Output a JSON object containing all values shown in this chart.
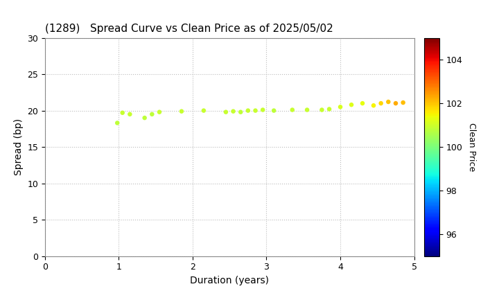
{
  "title": "(1289)   Spread Curve vs Clean Price as of 2025/05/02",
  "xlabel": "Duration (years)",
  "ylabel": "Spread (bp)",
  "colorbar_label": "Clean Price",
  "xlim": [
    0,
    5
  ],
  "ylim": [
    0,
    30
  ],
  "cmap_vmin": 95,
  "cmap_vmax": 105,
  "colorbar_ticks": [
    96,
    98,
    100,
    102,
    104
  ],
  "points": [
    {
      "duration": 0.98,
      "spread": 18.3,
      "price": 100.8
    },
    {
      "duration": 1.05,
      "spread": 19.7,
      "price": 100.9
    },
    {
      "duration": 1.15,
      "spread": 19.5,
      "price": 100.9
    },
    {
      "duration": 1.35,
      "spread": 19.0,
      "price": 100.8
    },
    {
      "duration": 1.45,
      "spread": 19.5,
      "price": 100.8
    },
    {
      "duration": 1.55,
      "spread": 19.8,
      "price": 100.9
    },
    {
      "duration": 1.85,
      "spread": 19.9,
      "price": 100.9
    },
    {
      "duration": 2.15,
      "spread": 20.0,
      "price": 100.9
    },
    {
      "duration": 2.45,
      "spread": 19.8,
      "price": 100.9
    },
    {
      "duration": 2.55,
      "spread": 19.9,
      "price": 100.9
    },
    {
      "duration": 2.65,
      "spread": 19.8,
      "price": 100.8
    },
    {
      "duration": 2.75,
      "spread": 20.0,
      "price": 100.9
    },
    {
      "duration": 2.85,
      "spread": 20.0,
      "price": 100.9
    },
    {
      "duration": 2.95,
      "spread": 20.1,
      "price": 100.9
    },
    {
      "duration": 3.1,
      "spread": 20.0,
      "price": 100.8
    },
    {
      "duration": 3.35,
      "spread": 20.1,
      "price": 100.9
    },
    {
      "duration": 3.55,
      "spread": 20.1,
      "price": 100.9
    },
    {
      "duration": 3.75,
      "spread": 20.1,
      "price": 100.9
    },
    {
      "duration": 3.85,
      "spread": 20.2,
      "price": 100.9
    },
    {
      "duration": 4.0,
      "spread": 20.5,
      "price": 101.1
    },
    {
      "duration": 4.15,
      "spread": 20.8,
      "price": 101.2
    },
    {
      "duration": 4.3,
      "spread": 21.0,
      "price": 101.3
    },
    {
      "duration": 4.45,
      "spread": 20.7,
      "price": 101.5
    },
    {
      "duration": 4.55,
      "spread": 21.0,
      "price": 101.8
    },
    {
      "duration": 4.65,
      "spread": 21.2,
      "price": 102.0
    },
    {
      "duration": 4.75,
      "spread": 21.0,
      "price": 102.3
    },
    {
      "duration": 4.85,
      "spread": 21.1,
      "price": 102.1
    }
  ],
  "bg_color": "#ffffff",
  "grid_color": "#bbbbbb",
  "marker_size": 22
}
